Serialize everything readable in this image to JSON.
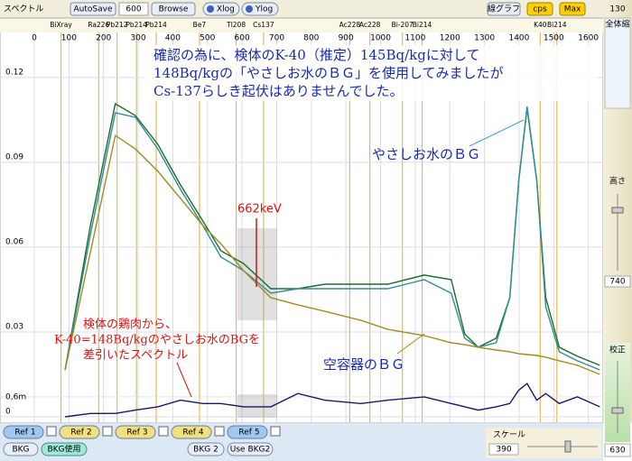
{
  "toolbar": {
    "title": "スペクトル",
    "autosave": "AutoSave",
    "count": "600",
    "browse": "Browse",
    "xlog": "Xlog",
    "ylog": "Ylog",
    "line_graph": "線グラフ",
    "cps": "cps",
    "max": "Max"
  },
  "chart_data": {
    "type": "line",
    "x": [
      89,
      162,
      234,
      292,
      357,
      422,
      487,
      539,
      604,
      683,
      761,
      839,
      943,
      1021,
      1126,
      1204,
      1243,
      1282,
      1334,
      1373,
      1399,
      1423,
      1451,
      1477,
      1516,
      1568,
      1633
    ],
    "series": [
      {
        "color": "#1f6b2c",
        "values": [
          0.0166,
          0.0676,
          0.1107,
          0.1065,
          0.0963,
          0.082,
          0.0692,
          0.0587,
          0.0542,
          0.0453,
          0.0453,
          0.0469,
          0.0469,
          0.0469,
          0.0501,
          0.0485,
          0.0293,
          0.0246,
          0.0278,
          0.0421,
          0.0836,
          0.1091,
          0.0836,
          0.0421,
          0.0246,
          0.0214,
          0.0182
        ]
      },
      {
        "color": "#2f8f94",
        "values": [
          0.0166,
          0.0644,
          0.1075,
          0.1059,
          0.0947,
          0.0804,
          0.0676,
          0.0565,
          0.0517,
          0.0437,
          0.0453,
          0.0453,
          0.0453,
          0.0453,
          0.0485,
          0.0437,
          0.0278,
          0.0246,
          0.0262,
          0.0421,
          0.0836,
          0.1097,
          0.0836,
          0.0389,
          0.023,
          0.0198,
          0.0166
        ]
      },
      {
        "color": "#a08c1e",
        "values": [
          0.0166,
          0.0581,
          0.0995,
          0.0947,
          0.0868,
          0.0772,
          0.0676,
          0.0612,
          0.0517,
          0.0421,
          0.0396,
          0.0373,
          0.0341,
          0.0309,
          0.0287,
          0.0262,
          0.0255,
          0.0246,
          0.0236,
          0.023,
          0.0223,
          0.022,
          0.0217,
          0.0211,
          0.0198,
          0.0182,
          0.015
        ]
      },
      {
        "color": "#1a1a60",
        "axis": "y2",
        "values": [
          0,
          0.0001,
          0.0001,
          0.0002,
          0.0003,
          0.0005,
          0.0004,
          0.0004,
          0.0003,
          0.0003,
          0.0007,
          0.0005,
          0.0004,
          0.0005,
          0.0006,
          0.0004,
          0.0003,
          0.0002,
          0.0003,
          0.0004,
          0.0008,
          0.001,
          0.0005,
          0.0007,
          0.0004,
          0.0006,
          0.0003
        ]
      }
    ],
    "xlim": [
      0,
      1640
    ],
    "xticks": [
      0,
      100,
      200,
      300,
      400,
      500,
      600,
      700,
      800,
      900,
      1000,
      1100,
      1200,
      1300,
      1400,
      1500,
      1600
    ],
    "ylim": [
      0,
      0.141
    ],
    "yticks": [
      0,
      0.03,
      0.06,
      0.09,
      0.12
    ],
    "y2lim": [
      0,
      0.012
    ],
    "y2ticks": [
      {
        "value": 0.0006,
        "label": "0,6m"
      }
    ],
    "grid": true,
    "markers": [
      {
        "label": "BiXray",
        "energy": 77
      },
      {
        "label": "Ra226",
        "energy": 186
      },
      {
        "label": "Pb212",
        "energy": 239
      },
      {
        "label": "Pb214",
        "energy": 295
      },
      {
        "label": "Pb214",
        "energy": 352
      },
      {
        "label": "Be7",
        "energy": 477
      },
      {
        "label": "Tl208",
        "energy": 583
      },
      {
        "label": "Cs137",
        "energy": 662
      },
      {
        "label": "Ac228",
        "energy": 911
      },
      {
        "label": "Ac228",
        "energy": 969
      },
      {
        "label": "Bi-207",
        "energy": 1063
      },
      {
        "label": "Bi214",
        "energy": 1120
      },
      {
        "label": "K40",
        "energy": 1461
      },
      {
        "label": "Bi214",
        "energy": 1509
      }
    ],
    "marker_color": "#e0b860",
    "annotations": {
      "note": [
        "確認の為に、検体のK-40（推定）145Bq/kgに対して",
        "148Bq/kgの「やさしお水のＢＧ」を使用してみましたが",
        "Cs-137らしき起伏はありませんでした。"
      ],
      "peak_label": "662keV",
      "water_bg": "やさしお水のＢＧ",
      "empty_bg": "空容器のＢＧ",
      "difference": [
        "検体の鶏肉から、",
        "K-40=148Bq/kgのやさしお水のBGを",
        "差引いたスペクトル"
      ]
    }
  },
  "right_panel": {
    "top": "130",
    "zoom": "全体縮",
    "height": "高さ",
    "height_value": "740",
    "calib": "校正",
    "calib_value": "630"
  },
  "bottom_bar": {
    "refs": [
      "Ref 1",
      "Ref 2",
      "Ref 3",
      "Ref 4",
      "Ref 5"
    ],
    "bkg": "BKG",
    "bkg_use": "BKG使用",
    "bkg2": "BKG 2",
    "use_bkg2": "Use BKG2",
    "scale": "スケール",
    "scale_value": "390"
  }
}
